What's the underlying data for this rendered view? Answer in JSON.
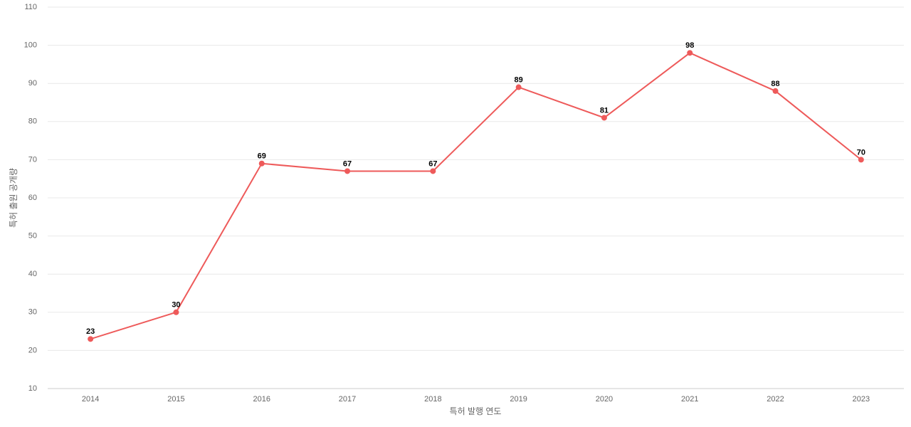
{
  "chart_data": {
    "type": "line",
    "x_label": "특허 발행 연도",
    "y_label": "특허 출원 공개량",
    "categories": [
      "2014",
      "2015",
      "2016",
      "2017",
      "2018",
      "2019",
      "2020",
      "2021",
      "2022",
      "2023"
    ],
    "series": [
      {
        "name": "특허 출원 공개량",
        "color": "#ee5a5a",
        "values": [
          23,
          30,
          69,
          67,
          67,
          89,
          81,
          98,
          88,
          70
        ]
      }
    ],
    "ylim": [
      10,
      110
    ],
    "yticks": [
      10,
      20,
      30,
      40,
      50,
      60,
      70,
      80,
      90,
      100,
      110
    ],
    "grid": true
  }
}
